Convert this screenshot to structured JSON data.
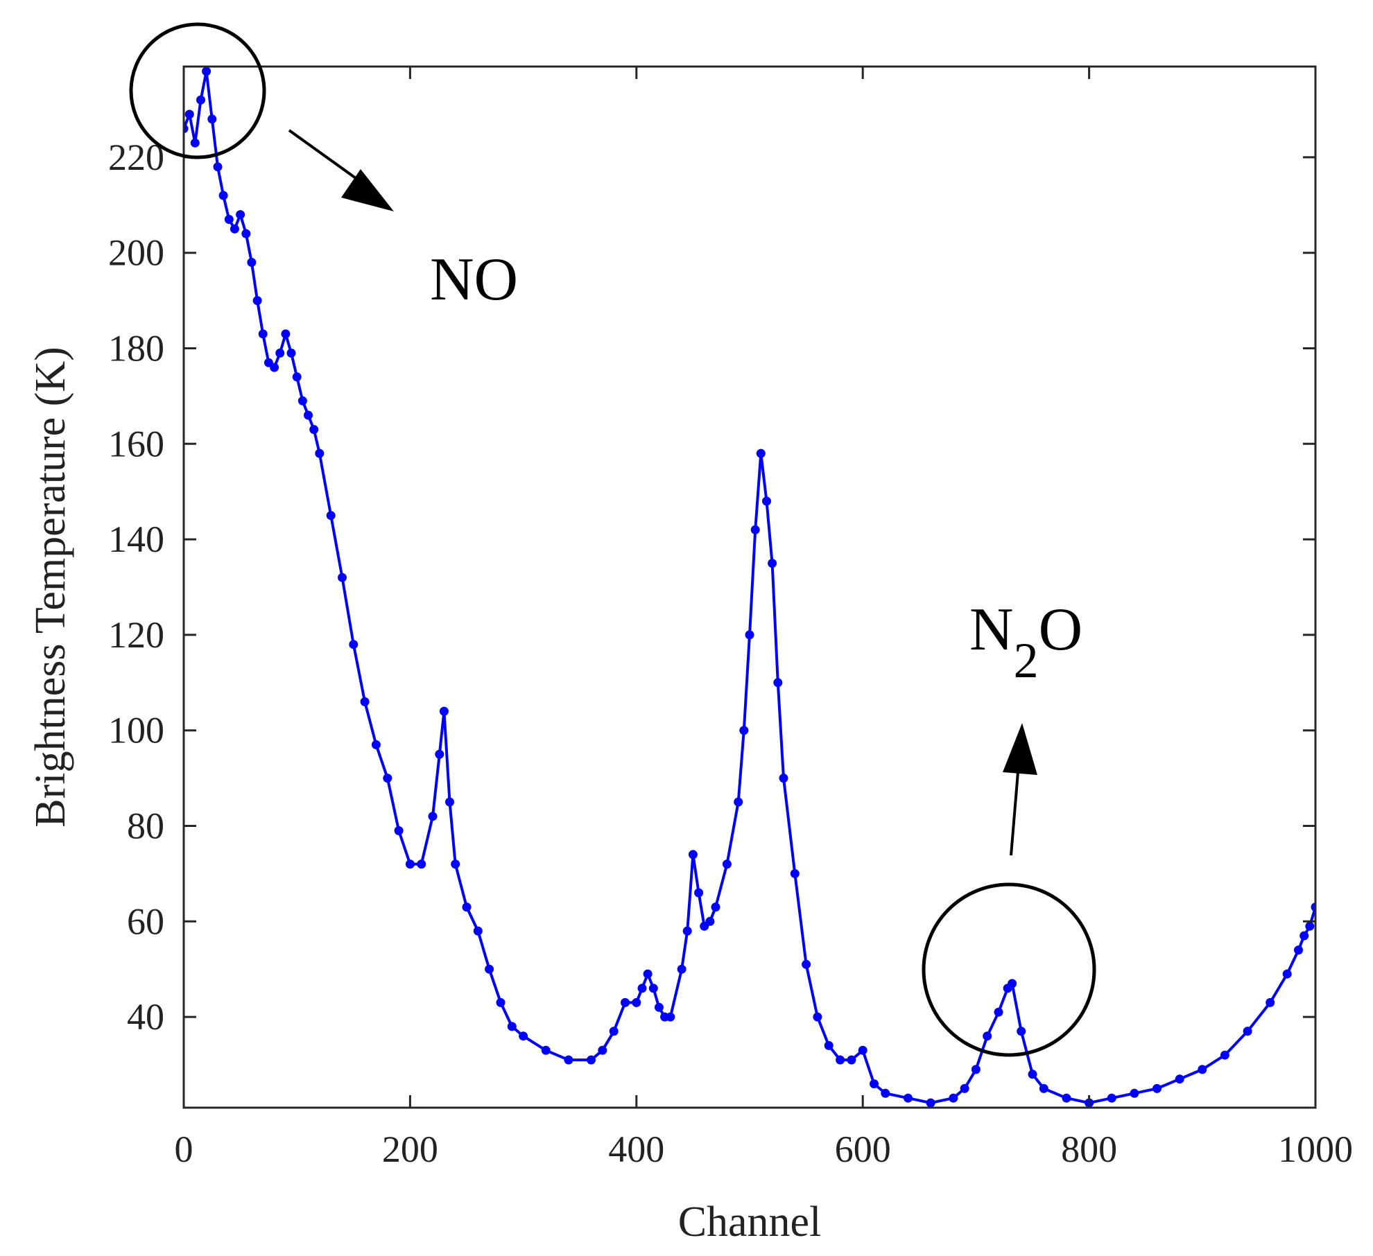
{
  "chart_data": {
    "type": "line",
    "title": "",
    "xlabel": "Channel",
    "ylabel": "Brightness Temperature (K)",
    "xlim": [
      0,
      1000
    ],
    "ylim": [
      21,
      239
    ],
    "xticks": [
      0,
      200,
      400,
      600,
      800,
      1000
    ],
    "yticks": [
      40,
      60,
      80,
      100,
      120,
      140,
      160,
      180,
      200,
      220
    ],
    "grid": false,
    "series": [
      {
        "name": "Brightness Temperature",
        "color": "#0000ff",
        "marker": "dot",
        "x": [
          0,
          5,
          10,
          15,
          20,
          25,
          30,
          35,
          40,
          45,
          50,
          55,
          60,
          65,
          70,
          75,
          80,
          85,
          90,
          95,
          100,
          105,
          110,
          115,
          120,
          130,
          140,
          150,
          160,
          170,
          180,
          190,
          200,
          210,
          220,
          226,
          230,
          235,
          240,
          250,
          260,
          270,
          280,
          290,
          300,
          320,
          340,
          360,
          370,
          380,
          390,
          400,
          405,
          410,
          415,
          420,
          425,
          430,
          440,
          445,
          450,
          455,
          460,
          465,
          470,
          480,
          490,
          495,
          500,
          505,
          510,
          515,
          520,
          525,
          530,
          540,
          550,
          560,
          570,
          580,
          590,
          600,
          610,
          620,
          640,
          660,
          680,
          690,
          700,
          710,
          720,
          728,
          732,
          740,
          750,
          760,
          780,
          800,
          820,
          840,
          860,
          880,
          900,
          920,
          940,
          960,
          975,
          985,
          990,
          995,
          1000
        ],
        "y": [
          226,
          229,
          223,
          232,
          238,
          228,
          218,
          212,
          207,
          205,
          208,
          204,
          198,
          190,
          183,
          177,
          176,
          179,
          183,
          179,
          174,
          169,
          166,
          163,
          158,
          145,
          132,
          118,
          106,
          97,
          90,
          79,
          72,
          72,
          82,
          95,
          104,
          85,
          72,
          63,
          58,
          50,
          43,
          38,
          36,
          33,
          31,
          31,
          33,
          37,
          43,
          43,
          46,
          49,
          46,
          42,
          40,
          40,
          50,
          58,
          74,
          66,
          59,
          60,
          63,
          72,
          85,
          100,
          120,
          142,
          158,
          148,
          135,
          110,
          90,
          70,
          51,
          40,
          34,
          31,
          31,
          33,
          26,
          24,
          23,
          22,
          23,
          25,
          29,
          36,
          41,
          46,
          47,
          37,
          28,
          25,
          23,
          22,
          23,
          24,
          25,
          27,
          29,
          32,
          37,
          43,
          49,
          54,
          57,
          59,
          63
        ]
      }
    ],
    "annotations": [
      {
        "text": "NO",
        "near_x": 20,
        "near_y": 234
      },
      {
        "text_main": "N",
        "text_sub": "2",
        "text_tail": "O",
        "near_x": 730,
        "near_y": 49
      }
    ]
  }
}
